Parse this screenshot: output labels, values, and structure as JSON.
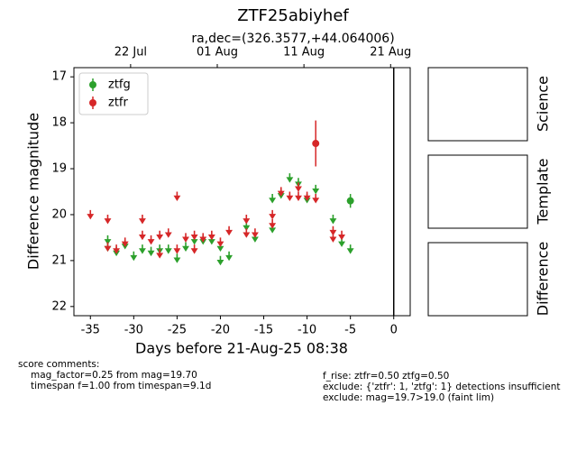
{
  "chart_data": {
    "type": "lightcurve",
    "title": "ZTF25abiyhef",
    "subtitle": "ra,dec=(326.3577,+44.064006)",
    "x_label": "Days before 21-Aug-25 08:38",
    "y_label": "Difference magnitude",
    "xlim": [
      -36.9,
      1.9
    ],
    "ylim": [
      22.2,
      16.8
    ],
    "xticks": [
      -35,
      -30,
      -25,
      -20,
      -15,
      -10,
      -5,
      0
    ],
    "yticks": [
      17,
      18,
      19,
      20,
      21,
      22
    ],
    "top_xticks": [
      {
        "value": -30.36,
        "label": "22 Jul"
      },
      {
        "value": -20.36,
        "label": "01 Aug"
      },
      {
        "value": -10.36,
        "label": "11 Aug"
      },
      {
        "value": -0.36,
        "label": "21 Aug"
      }
    ],
    "vline": 0,
    "legend": "upper left",
    "series": [
      {
        "name": "ztfg",
        "color": "#2ca02c",
        "x": [
          -5
        ],
        "values": [
          19.7
        ],
        "errors": [
          0.15
        ],
        "limit_x": [
          -33,
          -33,
          -32,
          -31,
          -30,
          -29,
          -28,
          -27,
          -26,
          -25,
          -24,
          -23,
          -22,
          -21,
          -20,
          -20,
          -19,
          -17,
          -16,
          -14,
          -14,
          -13,
          -12,
          -11,
          -10,
          -9,
          -7,
          -6,
          -5
        ],
        "limits": [
          20.45,
          20.6,
          20.7,
          20.55,
          20.8,
          20.65,
          20.7,
          20.65,
          20.65,
          20.85,
          20.6,
          20.45,
          20.45,
          20.45,
          20.6,
          20.9,
          20.8,
          20.15,
          20.4,
          19.55,
          20.2,
          19.45,
          19.1,
          19.2,
          19.55,
          19.35,
          20.0,
          20.5,
          20.65
        ]
      },
      {
        "name": "ztfr",
        "color": "#d62728",
        "x": [
          -9
        ],
        "values": [
          18.45
        ],
        "errors": [
          0.5
        ],
        "limit_x": [
          -35,
          -33,
          -33,
          -32,
          -31,
          -29,
          -29,
          -28,
          -27,
          -27,
          -26,
          -25,
          -25,
          -24,
          -23,
          -23,
          -22,
          -21,
          -20,
          -19,
          -17,
          -17,
          -16,
          -14,
          -14,
          -13,
          -12,
          -11,
          -11,
          -10,
          -9,
          -7,
          -7,
          -6
        ],
        "limits": [
          19.9,
          20.0,
          20.6,
          20.65,
          20.5,
          20.0,
          20.35,
          20.45,
          20.35,
          20.75,
          20.3,
          19.5,
          20.65,
          20.4,
          20.35,
          20.65,
          20.4,
          20.35,
          20.5,
          20.25,
          20.3,
          20.0,
          20.3,
          19.9,
          20.1,
          19.4,
          19.5,
          19.3,
          19.5,
          19.5,
          19.55,
          20.25,
          20.4,
          20.35
        ]
      }
    ],
    "panels": [
      "Science",
      "Template",
      "Difference"
    ],
    "notes_left": [
      "score comments:",
      "mag_factor=0.25 from mag=19.70",
      "timespan f=1.00 from timespan=9.1d"
    ],
    "notes_right": [
      "f_rise: ztfr=0.50 ztfg=0.50",
      "exclude: {'ztfr': 1, 'ztfg': 1} detections insufficient",
      "exclude: mag=19.7>19.0 (faint lim)"
    ]
  }
}
